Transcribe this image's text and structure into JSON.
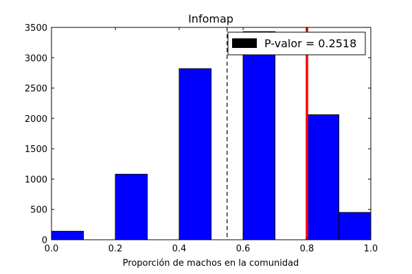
{
  "chart_data": {
    "type": "bar",
    "title": "Infomap",
    "xlabel": "Proporción de machos en la comunidad",
    "ylabel": "",
    "xlim": [
      0.0,
      1.0
    ],
    "ylim": [
      0,
      3500
    ],
    "bins": [
      {
        "x0": 0.0,
        "x1": 0.1,
        "value": 140
      },
      {
        "x0": 0.2,
        "x1": 0.3,
        "value": 1080
      },
      {
        "x0": 0.4,
        "x1": 0.5,
        "value": 2820
      },
      {
        "x0": 0.6,
        "x1": 0.7,
        "value": 3430
      },
      {
        "x0": 0.8,
        "x1": 0.9,
        "value": 2060
      },
      {
        "x0": 0.9,
        "x1": 1.0,
        "value": 450
      }
    ],
    "xticks": [
      "0.0",
      "0.2",
      "0.4",
      "0.6",
      "0.8",
      "1.0"
    ],
    "yticks": [
      "0",
      "500",
      "1000",
      "1500",
      "2000",
      "2500",
      "3000",
      "3500"
    ],
    "observed_line": {
      "x": 0.8,
      "color": "#ff0000"
    },
    "threshold_line": {
      "x": 0.55,
      "style": "dashed",
      "color": "#000000"
    },
    "legend": {
      "label": "P-valor = 0.2518",
      "placement": "top-right"
    },
    "bar_color": "#0000ff",
    "grid": false
  }
}
